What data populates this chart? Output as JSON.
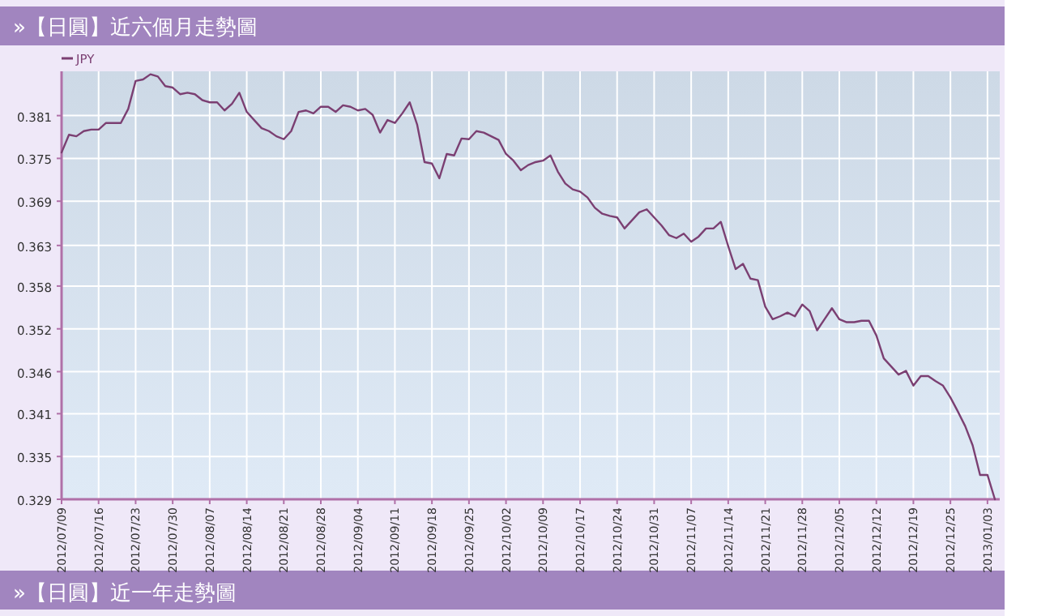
{
  "chart_data": {
    "type": "line",
    "title": "»【日圓】近六個月走勢圖",
    "annotations": [
      "»【日圓】近一年走勢圖"
    ],
    "categories": [
      "2012/07/09",
      null,
      null,
      null,
      null,
      "2012/07/16",
      null,
      null,
      null,
      null,
      "2012/07/23",
      null,
      null,
      null,
      null,
      "2012/07/30",
      null,
      null,
      null,
      null,
      "2012/08/07",
      null,
      null,
      null,
      null,
      "2012/08/14",
      null,
      null,
      null,
      null,
      "2012/08/21",
      null,
      null,
      null,
      null,
      "2012/08/28",
      null,
      null,
      null,
      null,
      "2012/09/04",
      null,
      null,
      null,
      null,
      "2012/09/11",
      null,
      null,
      null,
      null,
      "2012/09/18",
      null,
      null,
      null,
      null,
      "2012/09/25",
      null,
      null,
      null,
      null,
      "2012/10/02",
      null,
      null,
      null,
      null,
      "2012/10/09",
      null,
      null,
      null,
      null,
      "2012/10/17",
      null,
      null,
      null,
      null,
      "2012/10/24",
      null,
      null,
      null,
      null,
      "2012/10/31",
      null,
      null,
      null,
      null,
      "2012/11/07",
      null,
      null,
      null,
      null,
      "2012/11/14",
      null,
      null,
      null,
      null,
      "2012/11/21",
      null,
      null,
      null,
      null,
      "2012/11/28",
      null,
      null,
      null,
      null,
      "2012/12/05",
      null,
      null,
      null,
      null,
      "2012/12/12",
      null,
      null,
      null,
      null,
      "2012/12/19",
      null,
      null,
      null,
      null,
      "2012/12/25",
      null,
      null,
      null,
      null,
      "2013/01/03",
      null
    ],
    "series": [
      {
        "name": "JPY",
        "color": "#7b3f72",
        "values": [
          0.376,
          0.3784,
          0.3782,
          0.3789,
          0.3791,
          0.3791,
          0.38,
          0.38,
          0.38,
          0.3819,
          0.3857,
          0.3859,
          0.3866,
          0.3863,
          0.385,
          0.3848,
          0.3839,
          0.3841,
          0.3839,
          0.3831,
          0.3828,
          0.3828,
          0.3817,
          0.3826,
          0.3841,
          0.3815,
          0.3804,
          0.3793,
          0.3789,
          0.3782,
          0.3778,
          0.3789,
          0.3815,
          0.3817,
          0.3813,
          0.3822,
          0.3822,
          0.3815,
          0.3824,
          0.3822,
          0.3817,
          0.3819,
          0.3811,
          0.3787,
          0.3804,
          0.38,
          0.3813,
          0.3828,
          0.3798,
          0.3747,
          0.3745,
          0.3725,
          0.3758,
          0.3756,
          0.3779,
          0.3778,
          0.3789,
          0.3787,
          0.3782,
          0.3777,
          0.3758,
          0.3749,
          0.3736,
          0.3743,
          0.3747,
          0.3749,
          0.3756,
          0.3734,
          0.3718,
          0.371,
          0.3707,
          0.3699,
          0.3685,
          0.3677,
          0.3674,
          0.3672,
          0.3657,
          0.3668,
          0.3679,
          0.3683,
          0.3672,
          0.3661,
          0.3648,
          0.3644,
          0.365,
          0.3639,
          0.3646,
          0.3657,
          0.3657,
          0.3666,
          0.3633,
          0.3602,
          0.3609,
          0.3589,
          0.3587,
          0.3551,
          0.3534,
          0.3538,
          0.3543,
          0.3538,
          0.3554,
          0.3545,
          0.3519,
          0.3534,
          0.3549,
          0.3534,
          0.353,
          0.353,
          0.3532,
          0.3532,
          0.3512,
          0.3481,
          0.347,
          0.3459,
          0.3464,
          0.3444,
          0.3457,
          0.3457,
          0.345,
          0.3444,
          0.3428,
          0.3409,
          0.3389,
          0.3363,
          0.3323,
          0.3323,
          0.329
        ]
      }
    ],
    "ylim": [
      0.329,
      0.387
    ],
    "yticks": [
      {
        "value": 0.329,
        "label": "0.329"
      },
      {
        "value": 0.3348,
        "label": "0.335"
      },
      {
        "value": 0.3406,
        "label": "0.341"
      },
      {
        "value": 0.3463,
        "label": "0.346"
      },
      {
        "value": 0.3521,
        "label": "0.352"
      },
      {
        "value": 0.3579,
        "label": "0.358"
      },
      {
        "value": 0.3634,
        "label": "0.363"
      },
      {
        "value": 0.3694,
        "label": "0.369"
      },
      {
        "value": 0.3752,
        "label": "0.375"
      },
      {
        "value": 0.381,
        "label": "0.381"
      }
    ],
    "grid": true,
    "legend": "top left"
  }
}
